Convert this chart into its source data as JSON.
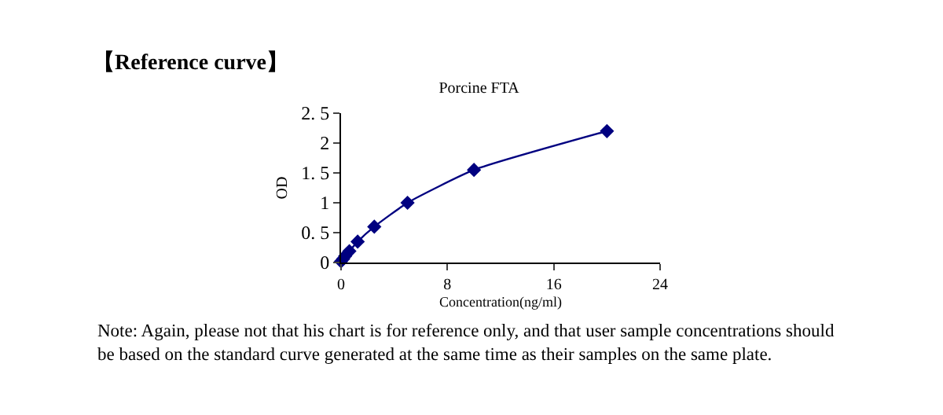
{
  "chart_data": {
    "type": "line",
    "title": "Porcine FTA",
    "xlabel": "Concentration(ng/ml)",
    "ylabel": "OD",
    "x": [
      0,
      0.156,
      0.312,
      0.625,
      1.25,
      2.5,
      5,
      10,
      20
    ],
    "series": [
      {
        "color": "#000080",
        "values": [
          0.02,
          0.06,
          0.11,
          0.19,
          0.35,
          0.6,
          1.0,
          1.55,
          2.2
        ]
      }
    ],
    "xlim": [
      0,
      24
    ],
    "xticks": [
      0,
      8,
      16,
      24
    ],
    "ylim": [
      0,
      2.5
    ],
    "yticks": [
      0,
      {
        "value": 0.5,
        "label": "0. 5"
      },
      1,
      {
        "value": 1.5,
        "label": "1. 5"
      },
      2,
      {
        "value": 2.5,
        "label": "2. 5"
      }
    ],
    "marker": "diamond",
    "line_style": "solid",
    "annotations": [
      "【Reference curve】",
      "Note: Again, please not that his chart is for reference only, and that user sample concentrations should be based on the standard curve generated at the same time as their samples on the same plate."
    ]
  }
}
